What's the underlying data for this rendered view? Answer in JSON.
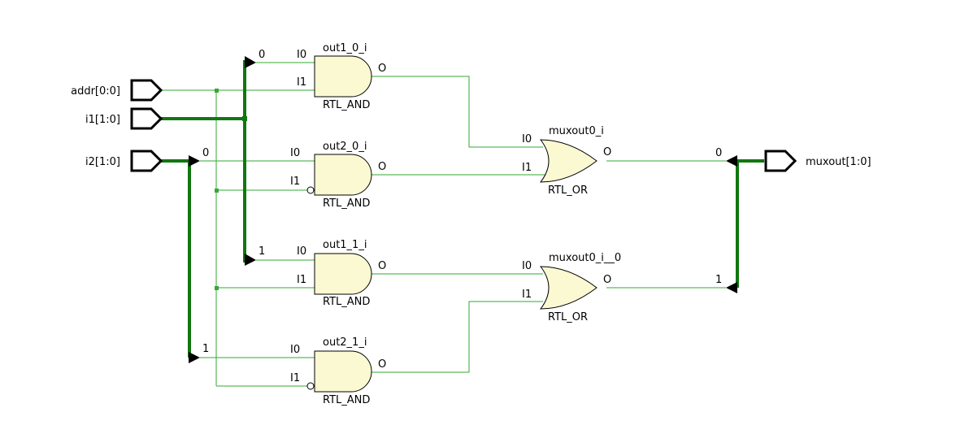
{
  "colors": {
    "wire": "#33aa33",
    "bus": "#117711",
    "gate_fill": "#fbf9d2",
    "background": "#ffffff"
  },
  "ports": {
    "addr": "addr[0:0]",
    "i1": "i1[1:0]",
    "i2": "i2[1:0]",
    "muxout": "muxout[1:0]"
  },
  "gates": {
    "out1_0": {
      "name": "out1_0_i",
      "type": "RTL_AND",
      "in0": "I0",
      "in1": "I1",
      "out": "O"
    },
    "out2_0": {
      "name": "out2_0_i",
      "type": "RTL_AND",
      "in0": "I0",
      "in1": "I1",
      "out": "O"
    },
    "out1_1": {
      "name": "out1_1_i",
      "type": "RTL_AND",
      "in0": "I0",
      "in1": "I1",
      "out": "O"
    },
    "out2_1": {
      "name": "out2_1_i",
      "type": "RTL_AND",
      "in0": "I0",
      "in1": "I1",
      "out": "O"
    },
    "mux0": {
      "name": "muxout0_i",
      "type": "RTL_OR",
      "in0": "I0",
      "in1": "I1",
      "out": "O"
    },
    "mux1": {
      "name": "muxout0_i__0",
      "type": "RTL_OR",
      "in0": "I0",
      "in1": "I1",
      "out": "O"
    }
  },
  "bus_taps": {
    "i1_bit0": "0",
    "i1_bit1": "1",
    "i2_bit0": "0",
    "i2_bit1": "1",
    "muxout_bit0": "0",
    "muxout_bit1": "1"
  }
}
